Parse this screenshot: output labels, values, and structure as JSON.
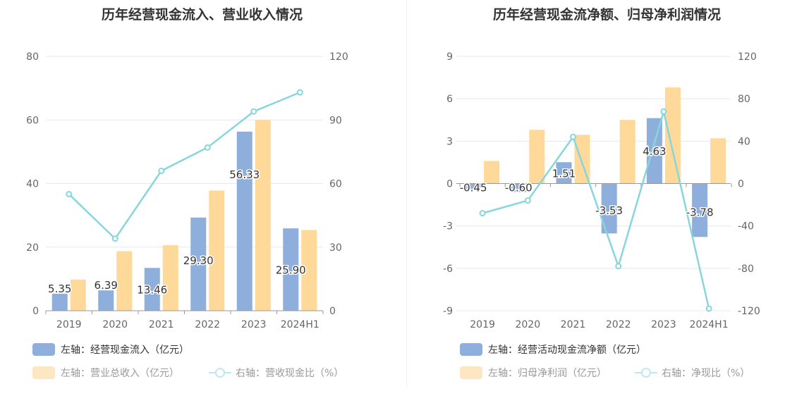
{
  "chart_data": [
    {
      "type": "bar",
      "title": "历年经营现金流入、营业收入情况",
      "categories": [
        "2019",
        "2020",
        "2021",
        "2022",
        "2023",
        "2024H1"
      ],
      "y_left": {
        "ticks": [
          0,
          20,
          40,
          60,
          80
        ],
        "range": [
          0,
          80
        ]
      },
      "y_right": {
        "ticks": [
          0,
          30,
          60,
          90,
          120
        ],
        "range": [
          0,
          120
        ]
      },
      "series": [
        {
          "name": "左轴：经营现金流入（亿元）",
          "type": "bar",
          "axis": "left",
          "color": "#8eaedb",
          "values": [
            5.35,
            6.39,
            13.46,
            29.3,
            56.33,
            25.9
          ],
          "labels": [
            "5.35",
            "6.39",
            "13.46",
            "29.30",
            "56.33",
            "25.90"
          ]
        },
        {
          "name": "左轴：营业总收入（亿元）",
          "type": "bar",
          "axis": "left",
          "color": "#ffd99a",
          "values": [
            9.8,
            18.7,
            20.6,
            37.8,
            60.0,
            25.4
          ]
        },
        {
          "name": "右轴：营收现金比（%）",
          "type": "line",
          "axis": "right",
          "color": "#88d6dd",
          "values": [
            55,
            34,
            66,
            77,
            94,
            103
          ]
        }
      ],
      "grid": true,
      "legend_position": "bottom-left"
    },
    {
      "type": "bar",
      "title": "历年经营现金流净额、归母净利润情况",
      "categories": [
        "2019",
        "2020",
        "2021",
        "2022",
        "2023",
        "2024H1"
      ],
      "y_left": {
        "ticks": [
          -9,
          -6,
          -3,
          0,
          3,
          6,
          9
        ],
        "range": [
          -9,
          9
        ]
      },
      "y_right": {
        "ticks": [
          -120,
          -80,
          -40,
          0,
          40,
          80,
          120
        ],
        "range": [
          -120,
          120
        ]
      },
      "series": [
        {
          "name": "左轴：经营活动现金流净额（亿元）",
          "type": "bar",
          "axis": "left",
          "color": "#8eaedb",
          "values": [
            -0.45,
            -0.6,
            1.51,
            -3.53,
            4.63,
            -3.78
          ],
          "labels": [
            "-0.45",
            "-0.60",
            "1.51",
            "-3.53",
            "4.63",
            "-3.78"
          ]
        },
        {
          "name": "左轴：归母净利润（亿元）",
          "type": "bar",
          "axis": "left",
          "color": "#ffd99a",
          "values": [
            1.6,
            3.8,
            3.45,
            4.5,
            6.8,
            3.2
          ]
        },
        {
          "name": "右轴：净现比（%）",
          "type": "line",
          "axis": "right",
          "color": "#88d6dd",
          "values": [
            -28,
            -16,
            44,
            -78,
            68,
            -118
          ]
        }
      ],
      "grid": true,
      "legend_position": "bottom-left"
    }
  ]
}
